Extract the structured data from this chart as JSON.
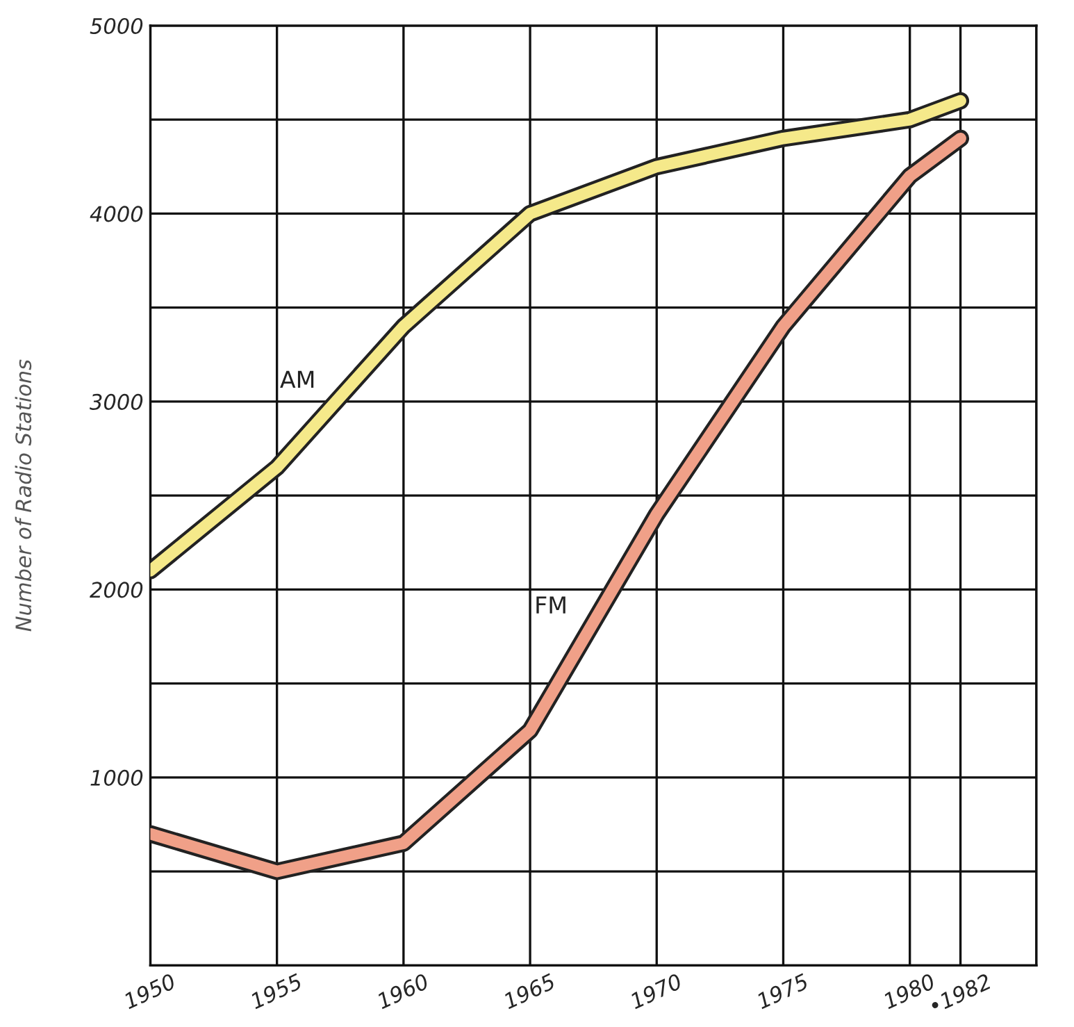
{
  "chart_data": {
    "type": "line",
    "ylabel": "Number of Radio Stations",
    "x": [
      1950,
      1955,
      1960,
      1965,
      1970,
      1975,
      1980,
      1982
    ],
    "series": [
      {
        "name": "AM",
        "color": "#f5e98a",
        "values": [
          2100,
          2650,
          3400,
          4000,
          4250,
          4400,
          4500,
          4600
        ]
      },
      {
        "name": "FM",
        "color": "#f0a088",
        "values": [
          700,
          500,
          650,
          1250,
          2400,
          3400,
          4200,
          4400
        ]
      }
    ],
    "xlim": [
      1950,
      1985
    ],
    "xticks": [
      1950,
      1955,
      1960,
      1965,
      1970,
      1975,
      1980,
      {
        "value": 1982,
        "label": "•1982"
      },
      {
        "value": 1985,
        "label": null
      }
    ],
    "ylim": [
      0,
      5000
    ],
    "yticks": [
      {
        "value": 0,
        "label": null
      },
      {
        "value": 500,
        "label": null
      },
      1000,
      {
        "value": 1500,
        "label": null
      },
      2000,
      {
        "value": 2500,
        "label": null
      },
      3000,
      {
        "value": 3500,
        "label": null
      },
      4000,
      {
        "value": 4500,
        "label": null
      },
      5000
    ],
    "grid": true,
    "line_style": "solid",
    "marker": "none"
  }
}
